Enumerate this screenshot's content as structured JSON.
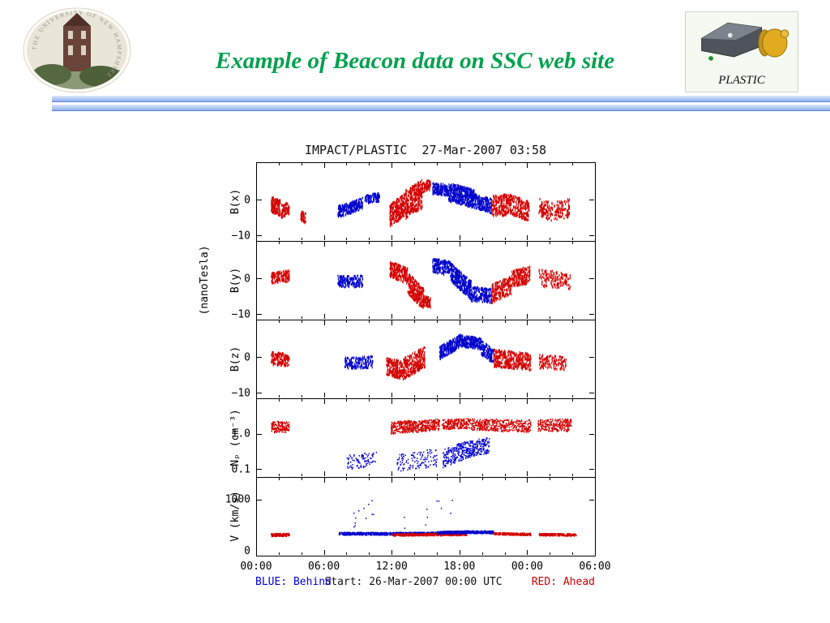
{
  "slide": {
    "title": "Example of Beacon data on SSC web site",
    "title_color": "#00a14e",
    "seal_text": "THE UNIVERSITY OF NEW HAMPSHIRE",
    "plastic_label": "PLASTIC"
  },
  "footer": {
    "blue_legend": "BLUE: Behind",
    "start_text": "Start: 26-Mar-2007 00:00 UTC",
    "red_legend": "RED: Ahead",
    "blue_color": "#0000dd",
    "red_color": "#cc0000"
  },
  "chart_data": {
    "type": "scatter",
    "title": "IMPACT/PLASTIC  27-Mar-2007 03:58",
    "x": {
      "range": [
        0,
        30
      ],
      "major_ticks": [
        0,
        6,
        12,
        18,
        24,
        30
      ],
      "tick_labels": [
        "00:00",
        "06:00",
        "12:00",
        "18:00",
        "00:00",
        "06:00"
      ],
      "minor_step": 2
    },
    "shared_ylabel": "(nanoTesla)",
    "colors": {
      "red": "#d40000",
      "blue": "#0000cd",
      "frame": "#000000"
    },
    "legend": {
      "blue": "Behind",
      "red": "Ahead"
    },
    "panels": [
      {
        "ylabel": "B(x)",
        "scale": "linear",
        "ylim": [
          -11.5,
          10.5
        ],
        "yticks": [
          {
            "v": 0,
            "label": "0"
          },
          {
            "v": -10,
            "label": "−10"
          }
        ],
        "dot": [
          1.2,
          3
        ],
        "segments": [
          [
            "r",
            1.3,
            2.1,
            -1,
            -2,
            2.2,
            130
          ],
          [
            "r",
            2.2,
            2.9,
            -3,
            -2,
            1.8,
            80
          ],
          [
            "r",
            3.9,
            4.4,
            -4,
            -5,
            1.5,
            50
          ],
          [
            "b",
            7.2,
            8.3,
            -3,
            -2,
            1.6,
            120
          ],
          [
            "b",
            8.3,
            9.4,
            -2,
            -0.5,
            1.6,
            120
          ],
          [
            "b",
            9.6,
            10.9,
            0.5,
            1,
            1.2,
            90
          ],
          [
            "r",
            11.8,
            13.2,
            -4,
            -1,
            3.2,
            260
          ],
          [
            "r",
            13.2,
            14.7,
            -1,
            2,
            4.0,
            300
          ],
          [
            "r",
            14.7,
            15.4,
            4,
            4.5,
            1.5,
            60
          ],
          [
            "b",
            15.6,
            17.0,
            3.5,
            3,
            1.6,
            160
          ],
          [
            "b",
            17.0,
            19.3,
            2.5,
            0.5,
            2.6,
            420
          ],
          [
            "b",
            19.3,
            20.8,
            0,
            -1.5,
            2.0,
            170
          ],
          [
            "r",
            20.8,
            22.4,
            -1.5,
            -1,
            3.0,
            200
          ],
          [
            "r",
            22.4,
            24.2,
            -1,
            -3,
            2.8,
            200
          ],
          [
            "r",
            25.0,
            26.2,
            -2,
            -3,
            2.6,
            90
          ],
          [
            "r",
            26.3,
            27.7,
            -3,
            -2,
            2.6,
            90
          ]
        ]
      },
      {
        "ylabel": "B(y)",
        "scale": "linear",
        "ylim": [
          -11.5,
          10.5
        ],
        "yticks": [
          {
            "v": 0,
            "label": "0"
          },
          {
            "v": -10,
            "label": "−10"
          }
        ],
        "dot": [
          1.2,
          3
        ],
        "segments": [
          [
            "r",
            1.3,
            2.9,
            0.5,
            1,
            1.6,
            150
          ],
          [
            "b",
            7.2,
            9.4,
            -0.5,
            -0.5,
            1.6,
            170
          ],
          [
            "r",
            11.8,
            13.4,
            3,
            1,
            2.2,
            220
          ],
          [
            "r",
            13.4,
            14.8,
            -1,
            -5.5,
            3.0,
            280
          ],
          [
            "r",
            14.8,
            15.4,
            -6,
            -6.5,
            1.5,
            70
          ],
          [
            "b",
            15.6,
            17.2,
            4,
            3,
            2.0,
            170
          ],
          [
            "b",
            17.2,
            19.0,
            2,
            -3,
            2.6,
            320
          ],
          [
            "b",
            19.0,
            20.8,
            -4,
            -4.5,
            2.0,
            170
          ],
          [
            "r",
            20.8,
            22.6,
            -4,
            -1.5,
            2.6,
            200
          ],
          [
            "r",
            22.6,
            24.2,
            0,
            1.5,
            2.4,
            180
          ],
          [
            "r",
            25.0,
            27.8,
            0.5,
            -0.5,
            2.4,
            150
          ]
        ]
      },
      {
        "ylabel": "B(z)",
        "scale": "linear",
        "ylim": [
          -11.5,
          10.5
        ],
        "yticks": [
          {
            "v": 0,
            "label": "0"
          },
          {
            "v": -10,
            "label": "−10"
          }
        ],
        "dot": [
          1.2,
          3
        ],
        "segments": [
          [
            "r",
            1.3,
            2.9,
            0,
            -0.5,
            1.8,
            150
          ],
          [
            "b",
            7.8,
            10.3,
            -1.5,
            -1,
            1.6,
            140
          ],
          [
            "r",
            11.5,
            13.0,
            -2,
            -3.5,
            2.6,
            200
          ],
          [
            "r",
            13.0,
            14.9,
            -3,
            0.5,
            3.0,
            280
          ],
          [
            "b",
            16.2,
            17.9,
            1.5,
            4.5,
            1.8,
            220
          ],
          [
            "b",
            17.9,
            19.9,
            5,
            4,
            1.6,
            260
          ],
          [
            "b",
            19.9,
            21.0,
            3,
            0.5,
            2.0,
            130
          ],
          [
            "r",
            21.0,
            22.6,
            0,
            -0.5,
            2.4,
            200
          ],
          [
            "r",
            22.6,
            24.3,
            -0.5,
            -1,
            2.4,
            170
          ],
          [
            "r",
            25.0,
            27.4,
            -1,
            -1.5,
            2.0,
            130
          ]
        ]
      },
      {
        "ylabel": "Nₚ (cm⁻³)",
        "scale": "log",
        "ylim": [
          0.06,
          10
        ],
        "yticks": [
          {
            "v": 1,
            "label": "1.0"
          },
          {
            "v": 0.1,
            "label": "0.1"
          }
        ],
        "dot": [
          1.4,
          1.6
        ],
        "segments": [
          [
            "r",
            1.3,
            2.9,
            1.6,
            1.6,
            1.45,
            160
          ],
          [
            "b",
            8.0,
            10.6,
            0.16,
            0.2,
            1.6,
            90
          ],
          [
            "r",
            11.9,
            14.0,
            1.5,
            1.7,
            1.5,
            260
          ],
          [
            "r",
            14.0,
            16.2,
            1.6,
            1.9,
            1.45,
            240
          ],
          [
            "b",
            12.4,
            16.0,
            0.15,
            0.22,
            1.8,
            130
          ],
          [
            "b",
            16.5,
            18.5,
            0.2,
            0.35,
            1.8,
            200
          ],
          [
            "b",
            18.5,
            20.6,
            0.35,
            0.5,
            1.7,
            220
          ],
          [
            "r",
            16.4,
            18.8,
            1.9,
            2.0,
            1.4,
            240
          ],
          [
            "r",
            18.8,
            21.2,
            1.9,
            1.8,
            1.45,
            220
          ],
          [
            "r",
            21.2,
            24.3,
            1.8,
            1.7,
            1.5,
            260
          ],
          [
            "r",
            24.9,
            27.9,
            1.8,
            1.8,
            1.5,
            260
          ]
        ]
      },
      {
        "ylabel": "V (km/s)",
        "scale": "linear",
        "ylim": [
          0,
          1400
        ],
        "yticks": [
          {
            "v": 1000,
            "label": "1000"
          },
          {
            "v": 0,
            "label": "0"
          }
        ],
        "dot": [
          1.4,
          1.6
        ],
        "segments": [
          [
            "r",
            1.3,
            2.9,
            380,
            380,
            28,
            160
          ],
          [
            "b",
            7.3,
            11.5,
            400,
            400,
            25,
            360
          ],
          [
            "b",
            11.5,
            16.0,
            400,
            405,
            25,
            360
          ],
          [
            "b",
            8.0,
            10.5,
            550,
            850,
            180,
            12
          ],
          [
            "b",
            13.0,
            17.5,
            650,
            800,
            250,
            10
          ],
          [
            "r",
            12.0,
            15.5,
            380,
            385,
            22,
            260
          ],
          [
            "r",
            15.5,
            18.6,
            385,
            390,
            22,
            220
          ],
          [
            "b",
            16.0,
            18.5,
            420,
            425,
            25,
            260
          ],
          [
            "b",
            18.5,
            21.0,
            430,
            425,
            25,
            240
          ],
          [
            "r",
            21.0,
            24.3,
            400,
            390,
            22,
            260
          ],
          [
            "r",
            25.0,
            28.3,
            385,
            380,
            22,
            240
          ]
        ]
      }
    ]
  }
}
